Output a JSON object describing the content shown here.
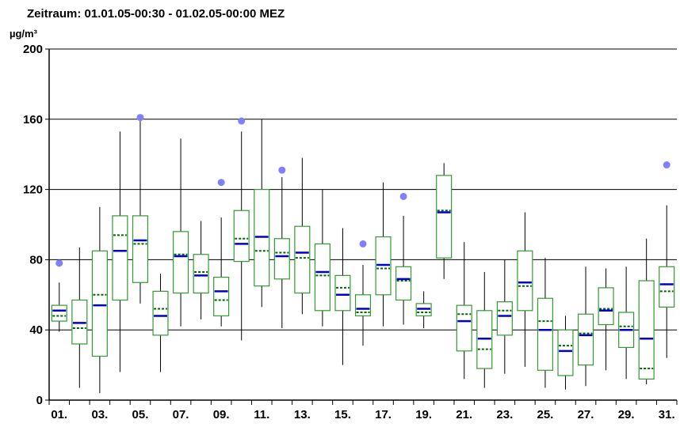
{
  "chart_data": {
    "type": "boxplot",
    "title": "Zeitraum: 01.01.05-00:30 - 01.02.05-00:00 MEZ",
    "ylabel": "µg/m³",
    "ylim": [
      0,
      200
    ],
    "yticks": [
      0,
      40,
      80,
      120,
      160,
      200
    ],
    "grid": true,
    "colors": {
      "box": "#339933",
      "median": "#0000cc",
      "mean": "#006600",
      "outlier": "#8080ff",
      "axis": "#000000",
      "grid": "#000000"
    },
    "xtick_labels": [
      "01.",
      "03.",
      "05.",
      "07.",
      "09.",
      "11.",
      "13.",
      "15.",
      "17.",
      "19.",
      "21.",
      "23.",
      "25.",
      "27.",
      "29.",
      "31."
    ],
    "days": [
      {
        "day": "01",
        "whisker_low": 39,
        "q1": 45,
        "median": 51,
        "mean": 48,
        "q3": 54,
        "whisker_high": 67,
        "outliers": [
          78
        ]
      },
      {
        "day": "02",
        "whisker_low": 7,
        "q1": 32,
        "median": 44,
        "mean": 41,
        "q3": 57,
        "whisker_high": 87,
        "outliers": []
      },
      {
        "day": "03",
        "whisker_low": 4,
        "q1": 25,
        "median": 54,
        "mean": 60,
        "q3": 85,
        "whisker_high": 110,
        "outliers": []
      },
      {
        "day": "04",
        "whisker_low": 16,
        "q1": 57,
        "median": 85,
        "mean": 94,
        "q3": 105,
        "whisker_high": 153,
        "outliers": []
      },
      {
        "day": "05",
        "whisker_low": 55,
        "q1": 67,
        "median": 91,
        "mean": 89,
        "q3": 105,
        "whisker_high": 161,
        "outliers": [
          161
        ]
      },
      {
        "day": "06",
        "whisker_low": 16,
        "q1": 37,
        "median": 48,
        "mean": 52,
        "q3": 62,
        "whisker_high": 72,
        "outliers": []
      },
      {
        "day": "07",
        "whisker_low": 42,
        "q1": 61,
        "median": 82,
        "mean": 83,
        "q3": 96,
        "whisker_high": 149,
        "outliers": []
      },
      {
        "day": "08",
        "whisker_low": 46,
        "q1": 61,
        "median": 71,
        "mean": 73,
        "q3": 83,
        "whisker_high": 102,
        "outliers": []
      },
      {
        "day": "09",
        "whisker_low": 42,
        "q1": 48,
        "median": 62,
        "mean": 57,
        "q3": 70,
        "whisker_high": 104,
        "outliers": [
          124
        ]
      },
      {
        "day": "10",
        "whisker_low": 34,
        "q1": 79,
        "median": 89,
        "mean": 92,
        "q3": 108,
        "whisker_high": 153,
        "outliers": [
          159
        ]
      },
      {
        "day": "11",
        "whisker_low": 53,
        "q1": 65,
        "median": 93,
        "mean": 85,
        "q3": 120,
        "whisker_high": 160,
        "outliers": []
      },
      {
        "day": "12",
        "whisker_low": 41,
        "q1": 69,
        "median": 82,
        "mean": 84,
        "q3": 92,
        "whisker_high": 127,
        "outliers": [
          131
        ]
      },
      {
        "day": "13",
        "whisker_low": 49,
        "q1": 61,
        "median": 84,
        "mean": 81,
        "q3": 99,
        "whisker_high": 138,
        "outliers": []
      },
      {
        "day": "14",
        "whisker_low": 42,
        "q1": 51,
        "median": 73,
        "mean": 71,
        "q3": 89,
        "whisker_high": 120,
        "outliers": []
      },
      {
        "day": "15",
        "whisker_low": 20,
        "q1": 51,
        "median": 60,
        "mean": 64,
        "q3": 71,
        "whisker_high": 98,
        "outliers": []
      },
      {
        "day": "16",
        "whisker_low": 31,
        "q1": 48,
        "median": 52,
        "mean": 50,
        "q3": 60,
        "whisker_high": 77,
        "outliers": [
          89
        ]
      },
      {
        "day": "17",
        "whisker_low": 42,
        "q1": 60,
        "median": 77,
        "mean": 75,
        "q3": 93,
        "whisker_high": 124,
        "outliers": []
      },
      {
        "day": "18",
        "whisker_low": 43,
        "q1": 57,
        "median": 69,
        "mean": 68,
        "q3": 76,
        "whisker_high": 105,
        "outliers": [
          116
        ]
      },
      {
        "day": "19",
        "whisker_low": 41,
        "q1": 48,
        "median": 52,
        "mean": 50,
        "q3": 55,
        "whisker_high": 62,
        "outliers": []
      },
      {
        "day": "20",
        "whisker_low": 69,
        "q1": 81,
        "median": 107,
        "mean": 108,
        "q3": 128,
        "whisker_high": 135,
        "outliers": []
      },
      {
        "day": "21",
        "whisker_low": 12,
        "q1": 28,
        "median": 45,
        "mean": 49,
        "q3": 54,
        "whisker_high": 90,
        "outliers": []
      },
      {
        "day": "22",
        "whisker_low": 7,
        "q1": 18,
        "median": 35,
        "mean": 29,
        "q3": 51,
        "whisker_high": 73,
        "outliers": []
      },
      {
        "day": "23",
        "whisker_low": 15,
        "q1": 37,
        "median": 48,
        "mean": 51,
        "q3": 56,
        "whisker_high": 80,
        "outliers": []
      },
      {
        "day": "24",
        "whisker_low": 19,
        "q1": 51,
        "median": 67,
        "mean": 65,
        "q3": 85,
        "whisker_high": 107,
        "outliers": []
      },
      {
        "day": "25",
        "whisker_low": 7,
        "q1": 17,
        "median": 40,
        "mean": 45,
        "q3": 58,
        "whisker_high": 81,
        "outliers": []
      },
      {
        "day": "26",
        "whisker_low": 6,
        "q1": 14,
        "median": 28,
        "mean": 31,
        "q3": 40,
        "whisker_high": 48,
        "outliers": []
      },
      {
        "day": "27",
        "whisker_low": 8,
        "q1": 20,
        "median": 37,
        "mean": 38,
        "q3": 49,
        "whisker_high": 76,
        "outliers": []
      },
      {
        "day": "28",
        "whisker_low": 17,
        "q1": 43,
        "median": 51,
        "mean": 52,
        "q3": 64,
        "whisker_high": 75,
        "outliers": []
      },
      {
        "day": "29",
        "whisker_low": 12,
        "q1": 30,
        "median": 40,
        "mean": 42,
        "q3": 50,
        "whisker_high": 76,
        "outliers": []
      },
      {
        "day": "30",
        "whisker_low": 9,
        "q1": 12,
        "median": 35,
        "mean": 18,
        "q3": 68,
        "whisker_high": 92,
        "outliers": []
      },
      {
        "day": "31",
        "whisker_low": 24,
        "q1": 53,
        "median": 66,
        "mean": 62,
        "q3": 76,
        "whisker_high": 111,
        "outliers": [
          134
        ]
      }
    ]
  }
}
